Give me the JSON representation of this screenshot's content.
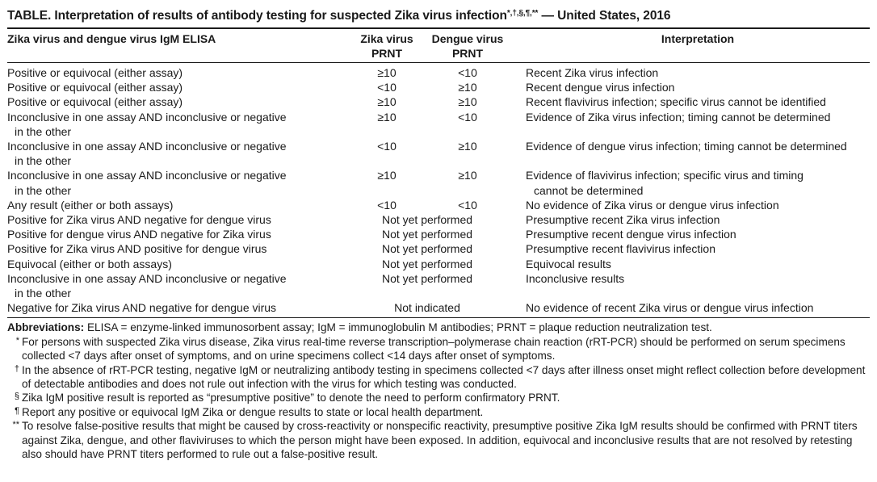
{
  "title": {
    "text": "TABLE. Interpretation of results of antibody testing for suspected Zika virus infection",
    "marks": "*,†,§,¶,**",
    "suffix": " — United States, 2016"
  },
  "headers": {
    "elisa": "Zika virus and dengue virus IgM ELISA",
    "zika_line1": "Zika virus",
    "zika_line2": "PRNT",
    "dengue_line1": "Dengue virus",
    "dengue_line2": "PRNT",
    "interpretation": "Interpretation"
  },
  "rows": [
    {
      "elisa": [
        "Positive or equivocal (either assay)"
      ],
      "zika": "≥10",
      "dengue": "<10",
      "interp": [
        "Recent Zika virus infection"
      ]
    },
    {
      "elisa": [
        "Positive or equivocal (either assay)"
      ],
      "zika": "<10",
      "dengue": "≥10",
      "interp": [
        "Recent dengue virus infection"
      ]
    },
    {
      "elisa": [
        "Positive or equivocal (either assay)"
      ],
      "zika": "≥10",
      "dengue": "≥10",
      "interp": [
        "Recent flavivirus infection; specific virus cannot be identified"
      ]
    },
    {
      "elisa": [
        "Inconclusive in one assay AND inconclusive or negative",
        "in the other"
      ],
      "zika": "≥10",
      "dengue": "<10",
      "interp": [
        "Evidence of Zika virus infection; timing cannot be determined"
      ]
    },
    {
      "elisa": [
        "Inconclusive in one assay AND inconclusive or negative",
        "in the other"
      ],
      "zika": "<10",
      "dengue": "≥10",
      "interp": [
        "Evidence of dengue virus infection; timing cannot be determined"
      ]
    },
    {
      "elisa": [
        "Inconclusive in one assay AND inconclusive or negative",
        "in the other"
      ],
      "zika": "≥10",
      "dengue": "≥10",
      "interp": [
        "Evidence of flavivirus infection; specific virus and timing",
        "cannot be determined"
      ]
    },
    {
      "elisa": [
        "Any result (either or both assays)"
      ],
      "zika": "<10",
      "dengue": "<10",
      "interp": [
        "No evidence of Zika virus or dengue virus infection"
      ]
    },
    {
      "elisa": [
        "Positive for Zika virus AND negative for dengue virus"
      ],
      "prnt": "Not yet performed",
      "interp": [
        "Presumptive recent Zika virus infection"
      ]
    },
    {
      "elisa": [
        "Positive for dengue virus AND negative for Zika virus"
      ],
      "prnt": "Not yet performed",
      "interp": [
        "Presumptive recent dengue virus infection"
      ]
    },
    {
      "elisa": [
        "Positive for Zika virus AND positive for dengue virus"
      ],
      "prnt": "Not yet performed",
      "interp": [
        "Presumptive recent flavivirus infection"
      ]
    },
    {
      "elisa": [
        "Equivocal (either or both assays)"
      ],
      "prnt": "Not yet performed",
      "interp": [
        "Equivocal results"
      ]
    },
    {
      "elisa": [
        "Inconclusive in one assay AND inconclusive or negative",
        "in the other"
      ],
      "prnt": "Not yet performed",
      "interp": [
        "Inconclusive results"
      ]
    },
    {
      "elisa": [
        "Negative for Zika virus AND negative for dengue virus"
      ],
      "prnt": "Not indicated",
      "interp": [
        "No evidence of recent Zika virus or dengue virus infection"
      ]
    }
  ],
  "abbreviations": {
    "label": "Abbreviations:",
    "text": " ELISA = enzyme-linked immunosorbent assay; IgM = immunoglobulin M antibodies; PRNT = plaque reduction neutralization test."
  },
  "footnotes": [
    {
      "mark": "*",
      "text": "For persons with suspected Zika virus disease, Zika virus real-time reverse transcription–polymerase chain reaction (rRT-PCR) should be performed on serum specimens collected <7 days after onset of symptoms, and on urine specimens collect <14 days after onset of symptoms."
    },
    {
      "mark": "†",
      "text": "In the absence of rRT-PCR testing, negative IgM or neutralizing antibody testing in specimens collected <7 days after illness onset might reflect collection before development of detectable antibodies and does not rule out infection with the virus for which testing was conducted."
    },
    {
      "mark": "§",
      "text": "Zika IgM positive result is reported as “presumptive positive” to denote the need to perform confirmatory PRNT."
    },
    {
      "mark": "¶",
      "text": "Report any positive or equivocal IgM Zika or dengue results to state or local health department."
    },
    {
      "mark": "**",
      "text": "To resolve false-positive results that might be caused by cross-reactivity or nonspecific reactivity, presumptive positive Zika IgM results should be confirmed with PRNT titers against Zika, dengue, and other flaviviruses to which the person might have been exposed. In addition, equivocal and inconclusive results that are not resolved by retesting also should have PRNT titers performed to rule out a false-positive result."
    }
  ]
}
